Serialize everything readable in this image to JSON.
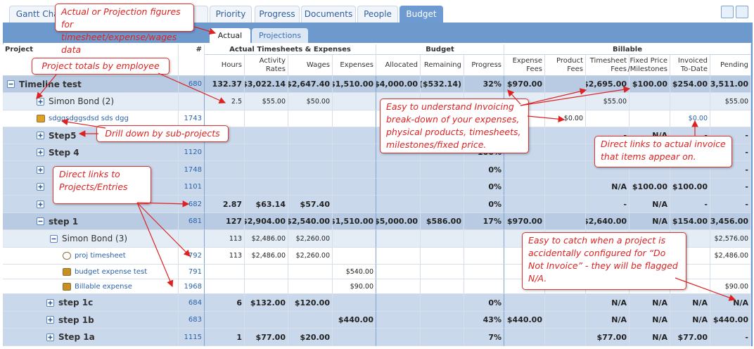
{
  "tabs": [
    "Gantt Chart",
    "Priority",
    "Progress",
    "Documents",
    "People",
    "Budget"
  ],
  "subtabs": [
    "Actual",
    "Projections"
  ],
  "table": {
    "header_groups": [
      "Project",
      "#",
      "Actual Timesheets & Expenses",
      "Budget",
      "Billable"
    ],
    "columns": [
      "Hours",
      "Activity Rates",
      "Wages",
      "Expenses",
      "Allocated",
      "Remaining",
      "Progress",
      "Expense Fees",
      "Product Fees",
      "Timesheet Fees",
      "Fixed Price /Milestones",
      "Invoiced To-Date",
      "Pending"
    ],
    "rows": [
      {
        "label": "Timeline test",
        "id": "680",
        "cells": [
          "132.37",
          "$3,022.14",
          "$2,647.40",
          "$1,510.00",
          "$4,000.00",
          "($532.14)",
          "32%",
          "$970.00",
          null,
          "$2,695.00",
          "$100.00",
          "$254.00",
          "$3,511.00"
        ]
      },
      {
        "label": "Simon Bond (2)",
        "id": null,
        "cells": [
          "2.5",
          "$55.00",
          "$50.00",
          null,
          null,
          null,
          null,
          null,
          null,
          "$55.00",
          null,
          null,
          "$55.00"
        ]
      },
      {
        "label": "sdggsdggsdsd sds dgg",
        "id": "1743",
        "cells": [
          null,
          null,
          null,
          null,
          null,
          null,
          null,
          null,
          "$0.00",
          null,
          null,
          "$0.00",
          null
        ]
      },
      {
        "label": "Step5",
        "id": null,
        "cells": [
          null,
          null,
          null,
          null,
          null,
          null,
          null,
          null,
          null,
          "-",
          "N/A",
          "-",
          "-"
        ]
      },
      {
        "label": "Step 4",
        "id": "1120",
        "cells": [
          null,
          null,
          null,
          null,
          null,
          null,
          "100%",
          null,
          null,
          null,
          null,
          null,
          "-"
        ]
      },
      {
        "label": null,
        "id": "1748",
        "cells": [
          null,
          null,
          null,
          null,
          null,
          null,
          "0%",
          null,
          null,
          null,
          null,
          null,
          "-"
        ]
      },
      {
        "label": null,
        "id": "1101",
        "cells": [
          null,
          null,
          null,
          null,
          null,
          null,
          "0%",
          null,
          null,
          "N/A",
          "$100.00",
          "$100.00",
          "-"
        ]
      },
      {
        "label": null,
        "id": "682",
        "cells": [
          "2.87",
          "$63.14",
          "$57.40",
          null,
          null,
          null,
          "0%",
          null,
          null,
          "-",
          "N/A",
          "-",
          "-"
        ]
      },
      {
        "label": "step 1",
        "id": "681",
        "cells": [
          "127",
          "$2,904.00",
          "$2,540.00",
          "$1,510.00",
          "$5,000.00",
          "$586.00",
          "17%",
          "$970.00",
          null,
          "$2,640.00",
          "N/A",
          "$154.00",
          "$3,456.00"
        ]
      },
      {
        "label": "Simon Bond (3)",
        "id": null,
        "cells": [
          "113",
          "$2,486.00",
          "$2,260.00",
          null,
          null,
          null,
          null,
          null,
          null,
          null,
          null,
          null,
          "$2,576.00"
        ]
      },
      {
        "label": "proj timesheet",
        "id": "792",
        "cells": [
          "113",
          "$2,486.00",
          "$2,260.00",
          null,
          null,
          null,
          null,
          null,
          null,
          null,
          null,
          null,
          "$2,486.00"
        ]
      },
      {
        "label": "budget expense test",
        "id": "791",
        "cells": [
          null,
          null,
          null,
          "$540.00",
          null,
          null,
          null,
          null,
          null,
          null,
          null,
          null,
          null
        ]
      },
      {
        "label": "Billable expense",
        "id": "1968",
        "cells": [
          null,
          null,
          null,
          "$90.00",
          null,
          null,
          null,
          null,
          null,
          null,
          null,
          null,
          "$90.00"
        ]
      },
      {
        "label": "step 1c",
        "id": "684",
        "cells": [
          "6",
          "$132.00",
          "$120.00",
          null,
          null,
          null,
          "0%",
          null,
          null,
          "N/A",
          "N/A",
          "N/A",
          "N/A"
        ]
      },
      {
        "label": "step 1b",
        "id": "683",
        "cells": [
          null,
          null,
          null,
          "$440.00",
          null,
          null,
          "43%",
          "$440.00",
          null,
          "N/A",
          "N/A",
          "N/A",
          "$440.00"
        ]
      },
      {
        "label": "Step 1a",
        "id": "1115",
        "cells": [
          "1",
          "$77.00",
          "$20.00",
          null,
          null,
          null,
          "7%",
          null,
          null,
          "$77.00",
          "N/A",
          "$77.00",
          "-"
        ]
      }
    ]
  },
  "callouts": [
    "Actual or Projection figures for timesheet/expense/wages data",
    "Project totals by employee",
    "Drill down by sub-projects",
    "Direct links to Projects/Entries",
    "Easy to understand Invoicing break-down of your expenses, physical products, timesheets, milestones/fixed price.",
    "Direct links to actual invoice that items appear on.",
    "Easy to catch when a project is accidentally configured for “Do Not Invoice” - they will be flagged N/A."
  ]
}
